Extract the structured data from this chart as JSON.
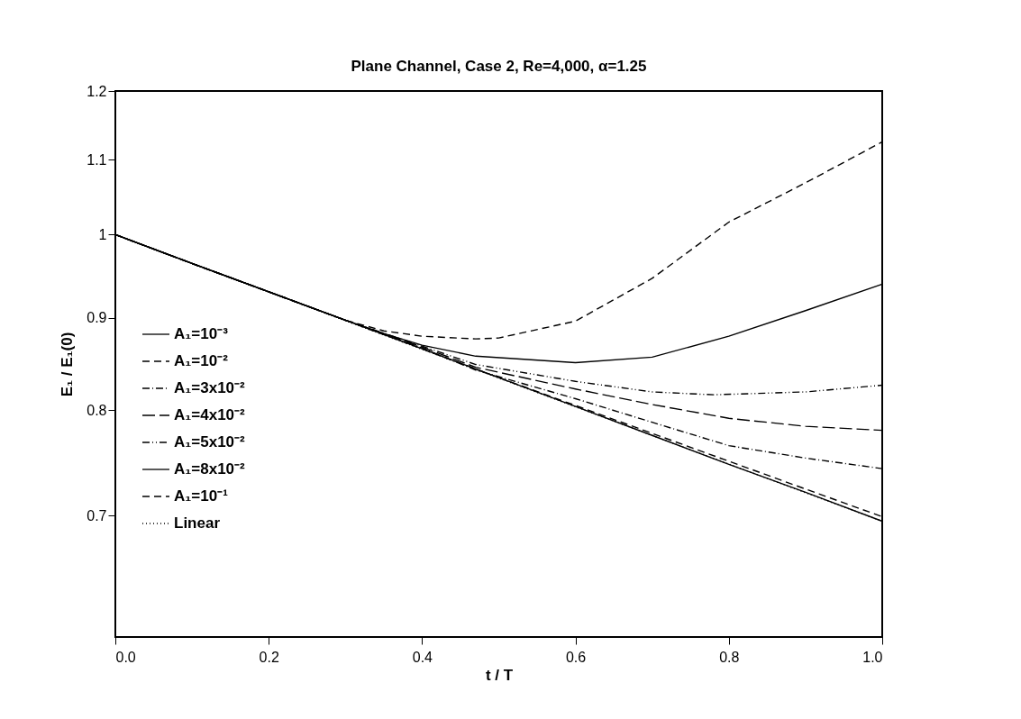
{
  "chart_data": {
    "type": "line",
    "title": "Plane Channel, Case 2, Re=4,000, α=1.25",
    "xlabel": "t / T",
    "ylabel": "E₁ / E₁(0)",
    "xlim": [
      0,
      1
    ],
    "xticks": [
      {
        "value": 0,
        "label": "0.0"
      },
      0.2,
      0.4,
      0.6,
      0.8,
      {
        "value": 1,
        "label": "1.0"
      }
    ],
    "ylim": [
      0.6,
      1.2
    ],
    "yticks": [
      0.7,
      0.8,
      0.9,
      1,
      1.1,
      1.2
    ],
    "log": "y",
    "grid": false,
    "legend": "left",
    "series": [
      {
        "name": "A₁=10⁻³",
        "color": "#000000",
        "line_style": "solid",
        "x": [
          0,
          0.1,
          0.2,
          0.3,
          0.4,
          0.5,
          0.6,
          0.7,
          0.8,
          0.9,
          1
        ],
        "values": [
          1,
          0.964,
          0.93,
          0.897,
          0.865,
          0.834,
          0.804,
          0.775,
          0.747,
          0.721,
          0.695
        ]
      },
      {
        "name": "A₁=10⁻²",
        "color": "#000000",
        "line_style": "dashed",
        "x": [
          0,
          0.1,
          0.2,
          0.3,
          0.4,
          0.5,
          0.6,
          0.7,
          0.8,
          0.9,
          1
        ],
        "values": [
          1,
          0.964,
          0.93,
          0.897,
          0.865,
          0.834,
          0.805,
          0.777,
          0.75,
          0.724,
          0.699
        ]
      },
      {
        "name": "A₁=3x10⁻²",
        "color": "#000000",
        "line_style": "dashdot",
        "x": [
          0,
          0.1,
          0.2,
          0.3,
          0.4,
          0.47,
          0.6,
          0.7,
          0.8,
          0.9,
          1
        ],
        "values": [
          1,
          0.964,
          0.93,
          0.897,
          0.866,
          0.842,
          0.812,
          0.788,
          0.765,
          0.753,
          0.743
        ]
      },
      {
        "name": "A₁=4x10⁻²",
        "color": "#000000",
        "line_style": "longdash",
        "x": [
          0,
          0.1,
          0.2,
          0.3,
          0.4,
          0.47,
          0.6,
          0.7,
          0.8,
          0.9,
          1
        ],
        "values": [
          1,
          0.964,
          0.93,
          0.897,
          0.867,
          0.845,
          0.822,
          0.806,
          0.792,
          0.784,
          0.78
        ]
      },
      {
        "name": "A₁=5x10⁻²",
        "color": "#000000",
        "line_style": "dashdotdot",
        "x": [
          0,
          0.1,
          0.2,
          0.3,
          0.4,
          0.47,
          0.6,
          0.7,
          0.78,
          0.9,
          1
        ],
        "values": [
          1,
          0.964,
          0.93,
          0.897,
          0.868,
          0.848,
          0.83,
          0.819,
          0.816,
          0.819,
          0.826
        ]
      },
      {
        "name": "A₁=8x10⁻²",
        "color": "#000000",
        "line_style": "solid",
        "x": [
          0,
          0.1,
          0.2,
          0.3,
          0.35,
          0.4,
          0.47,
          0.6,
          0.7,
          0.8,
          0.9,
          1
        ],
        "values": [
          1,
          0.964,
          0.93,
          0.897,
          0.882,
          0.869,
          0.857,
          0.85,
          0.856,
          0.879,
          0.908,
          0.939
        ]
      },
      {
        "name": "A₁=10⁻¹",
        "color": "#000000",
        "line_style": "dashed",
        "x": [
          0,
          0.1,
          0.2,
          0.3,
          0.35,
          0.4,
          0.47,
          0.5,
          0.6,
          0.7,
          0.8,
          0.9,
          1
        ],
        "values": [
          1,
          0.964,
          0.93,
          0.897,
          0.885,
          0.879,
          0.876,
          0.877,
          0.896,
          0.946,
          1.016,
          1.068,
          1.125
        ]
      },
      {
        "name": "Linear",
        "color": "#000000",
        "line_style": "dotted",
        "x": [
          0,
          0.1,
          0.2,
          0.3,
          0.4,
          0.5,
          0.6,
          0.7,
          0.8,
          0.9,
          1
        ],
        "values": [
          1,
          0.9643,
          0.9297,
          0.8965,
          0.8645,
          0.8335,
          0.8037,
          0.775,
          0.7473,
          0.7206,
          0.695
        ]
      }
    ]
  }
}
